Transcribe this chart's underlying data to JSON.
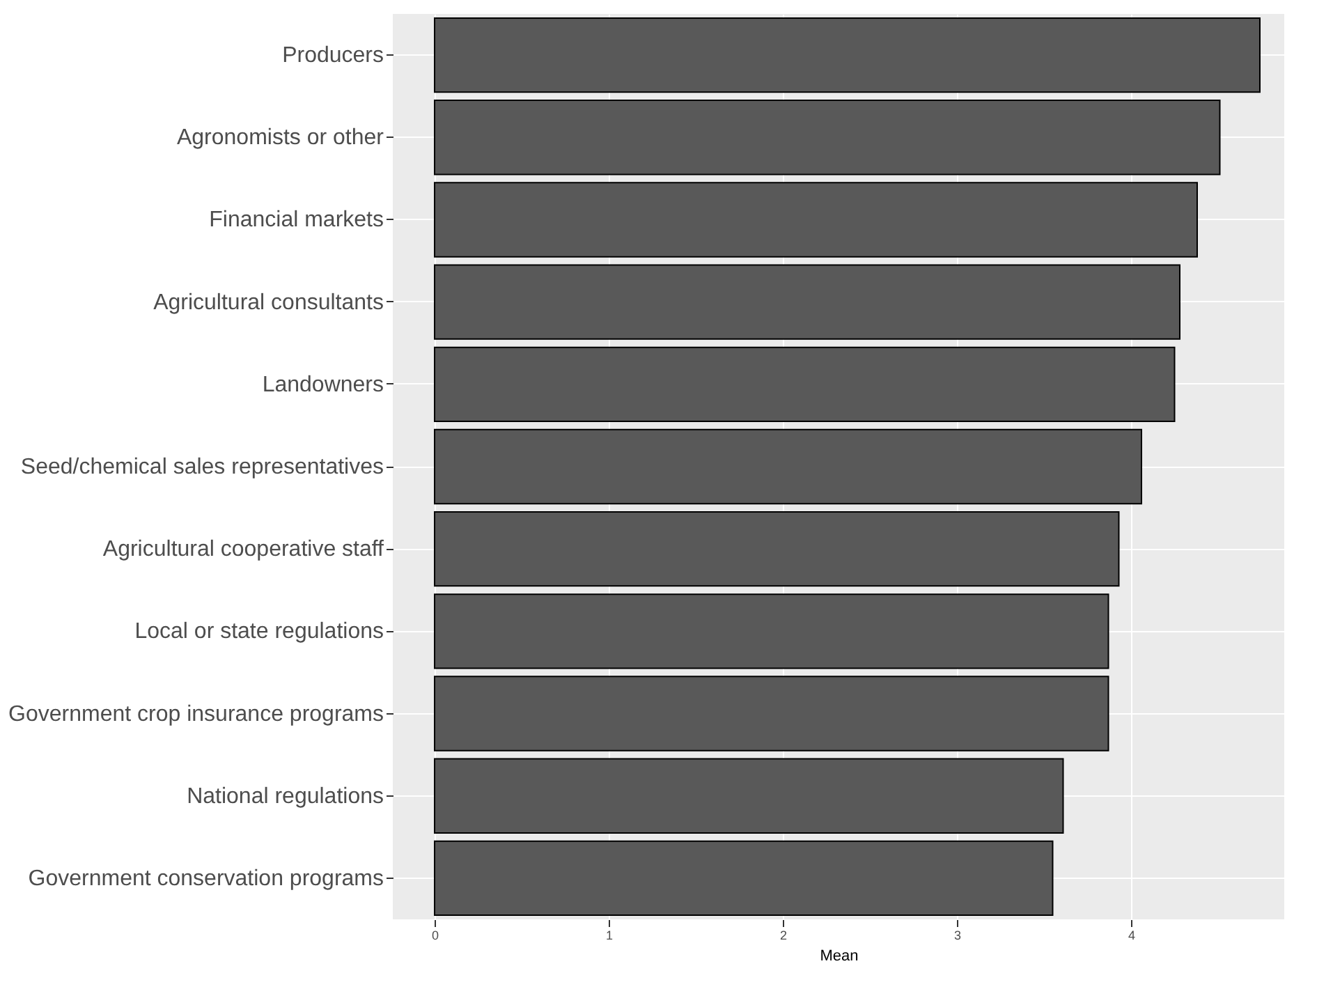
{
  "chart_data": {
    "type": "bar",
    "orientation": "horizontal",
    "xlabel": "Mean",
    "categories": [
      "Producers",
      "Agronomists or other",
      "Financial markets",
      "Agricultural consultants",
      "Landowners",
      "Seed/chemical sales representatives",
      "Agricultural cooperative staff",
      "Local or state regulations",
      "Government crop insurance programs",
      "National regulations",
      "Government conservation programs"
    ],
    "values": [
      4.74,
      4.51,
      4.38,
      4.28,
      4.25,
      4.06,
      3.93,
      3.87,
      3.87,
      3.61,
      3.55
    ],
    "color": "#595959",
    "xlim": [
      -0.24,
      4.88
    ],
    "xticks": [
      0,
      1,
      2,
      3,
      4
    ],
    "grid": true
  }
}
